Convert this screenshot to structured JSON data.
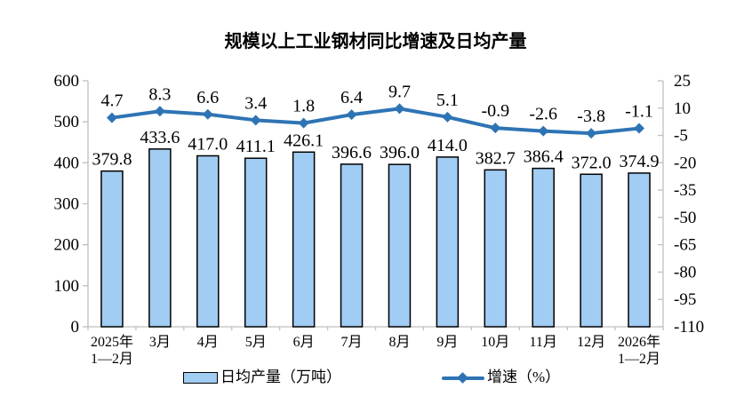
{
  "title": "规模以上工业钢材同比增速及日均产量",
  "legend": {
    "bar_label": "日均产量（万吨）",
    "line_label": "增速（%）"
  },
  "colors": {
    "bar_fill": "#A1CCF3",
    "bar_stroke": "#000000",
    "line": "#2E74B5",
    "axis": "#BFBFBF",
    "text": "#000000"
  },
  "chart_data": {
    "type": "bar",
    "subtype": "bar-line-combo",
    "title": "规模以上工业钢材同比增速及日均产量",
    "grid": false,
    "legend_position": "bottom",
    "categories": [
      [
        "2025年",
        "1—2月"
      ],
      [
        "3月"
      ],
      [
        "4月"
      ],
      [
        "5月"
      ],
      [
        "6月"
      ],
      [
        "7月"
      ],
      [
        "8月"
      ],
      [
        "9月"
      ],
      [
        "10月"
      ],
      [
        "11月"
      ],
      [
        "12月"
      ],
      [
        "2026年",
        "1—2月"
      ]
    ],
    "series": [
      {
        "name": "日均产量（万吨）",
        "type": "bar",
        "axis": "left",
        "values": [
          379.8,
          433.6,
          417.0,
          411.1,
          426.1,
          396.6,
          396.0,
          414.0,
          382.7,
          386.4,
          372.0,
          374.9
        ]
      },
      {
        "name": "增速（%）",
        "type": "line",
        "axis": "right",
        "values": [
          4.7,
          8.3,
          6.6,
          3.4,
          1.8,
          6.4,
          9.7,
          5.1,
          -0.9,
          -2.6,
          -3.8,
          -1.1
        ]
      }
    ],
    "left_axis": {
      "min": 0,
      "max": 600,
      "step": 100,
      "ticks": [
        600,
        500,
        400,
        300,
        200,
        100,
        0
      ]
    },
    "right_axis": {
      "min": -110,
      "max": 25,
      "step": 15,
      "ticks": [
        25,
        10,
        -5,
        -20,
        -35,
        -50,
        -65,
        -80,
        -95,
        -110
      ]
    }
  }
}
